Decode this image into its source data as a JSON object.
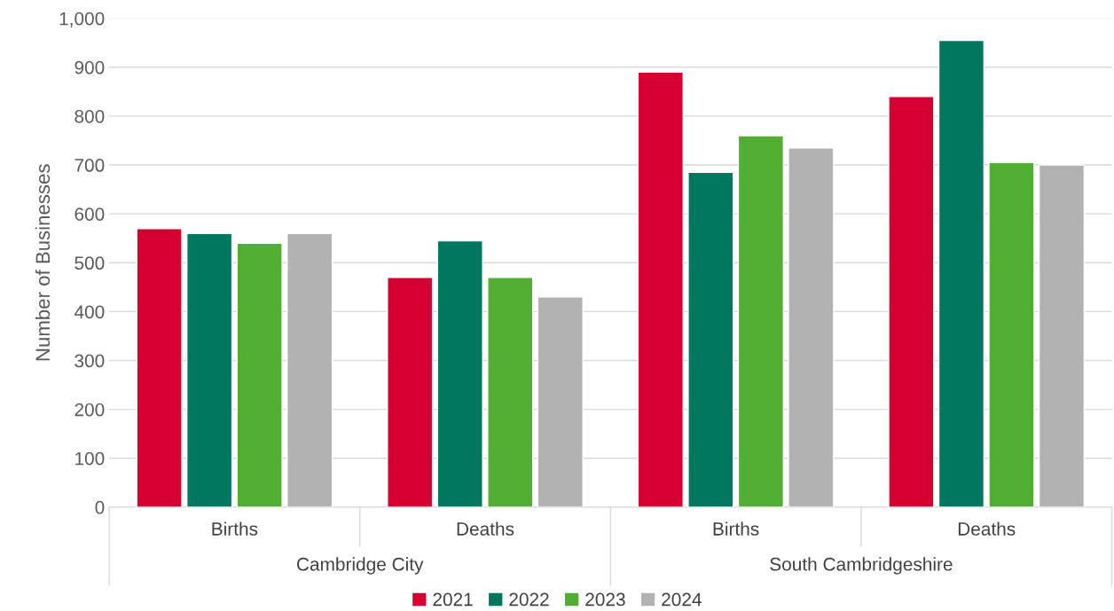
{
  "chart_data": {
    "type": "bar",
    "ylabel": "Number of Businesses",
    "categories": [
      "Births",
      "Deaths",
      "Births",
      "Deaths"
    ],
    "annotations": [
      "Cambridge City",
      "South Cambridgeshire"
    ],
    "series": [
      {
        "name": "2021",
        "color": "#d50032",
        "values": [
          570,
          470,
          890,
          840
        ]
      },
      {
        "name": "2022",
        "color": "#00775f",
        "values": [
          560,
          545,
          685,
          955
        ]
      },
      {
        "name": "2023",
        "color": "#52ae32",
        "values": [
          540,
          470,
          760,
          705
        ]
      },
      {
        "name": "2024",
        "color": "#b2b2b2",
        "values": [
          560,
          430,
          735,
          700
        ]
      }
    ],
    "ylim": [
      0,
      1000
    ],
    "yticks": [
      0,
      100,
      200,
      300,
      400,
      500,
      600,
      700,
      800,
      900,
      {
        "value": 1000,
        "label": "1,000"
      }
    ],
    "grid": "y",
    "legend": "bottom"
  }
}
